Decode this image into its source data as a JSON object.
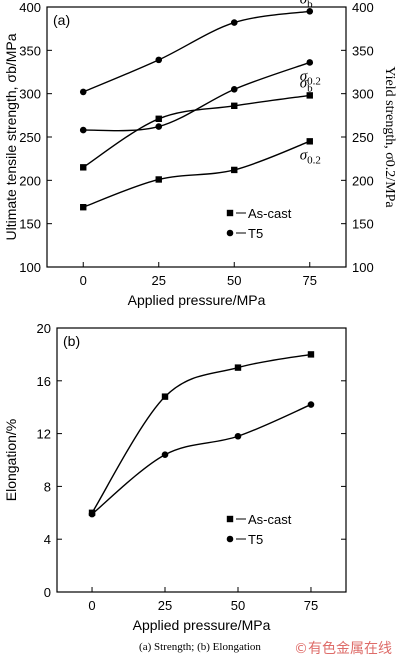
{
  "caption": "(a) Strength; (b) Elongation",
  "watermark": "©有色金属在线",
  "chart_data": [
    {
      "panel": "(a)",
      "type": "line",
      "x": [
        0,
        25,
        50,
        75
      ],
      "xlabel": "Applied pressure/MPa",
      "xlim": [
        -12,
        87
      ],
      "xticks": [
        0,
        25,
        50,
        75
      ],
      "ylabel": "Ultimate tensile strength, σb/MPa",
      "ylim": [
        100,
        400
      ],
      "yticks": [
        100,
        150,
        200,
        250,
        300,
        350,
        400
      ],
      "y2label": "Yield strength, σ0.2/MPa",
      "y2lim": [
        100,
        400
      ],
      "y2ticks": [
        100,
        150,
        200,
        250,
        300,
        350,
        400
      ],
      "legend_position": "bottom-right",
      "legend": [
        {
          "label": "As-cast",
          "marker": "square"
        },
        {
          "label": "T5",
          "marker": "circle"
        }
      ],
      "series": [
        {
          "marker": "circle",
          "axis": "left",
          "values": [
            302,
            339,
            382,
            395
          ],
          "label": "σb"
        },
        {
          "marker": "circle",
          "axis": "right",
          "values": [
            258,
            262,
            305,
            336
          ],
          "label": "σ0.2"
        },
        {
          "marker": "square",
          "axis": "left",
          "values": [
            215,
            271,
            286,
            298
          ],
          "label": "σb"
        },
        {
          "marker": "square",
          "axis": "right",
          "values": [
            169,
            201,
            212,
            245
          ],
          "label": "σ0.2"
        }
      ]
    },
    {
      "panel": "(b)",
      "type": "line",
      "x": [
        0,
        25,
        50,
        75
      ],
      "xlabel": "Applied pressure/MPa",
      "xlim": [
        -12,
        87
      ],
      "xticks": [
        0,
        25,
        50,
        75
      ],
      "ylabel": "Elongation/%",
      "ylim": [
        0,
        20
      ],
      "yticks": [
        0,
        4,
        8,
        12,
        16,
        20
      ],
      "legend_position": "bottom-right",
      "legend": [
        {
          "label": "As-cast",
          "marker": "square"
        },
        {
          "label": "T5",
          "marker": "circle"
        }
      ],
      "series": [
        {
          "marker": "square",
          "values": [
            6.0,
            14.8,
            17.0,
            18.0
          ]
        },
        {
          "marker": "circle",
          "values": [
            5.9,
            10.4,
            11.8,
            14.2
          ]
        }
      ]
    }
  ]
}
